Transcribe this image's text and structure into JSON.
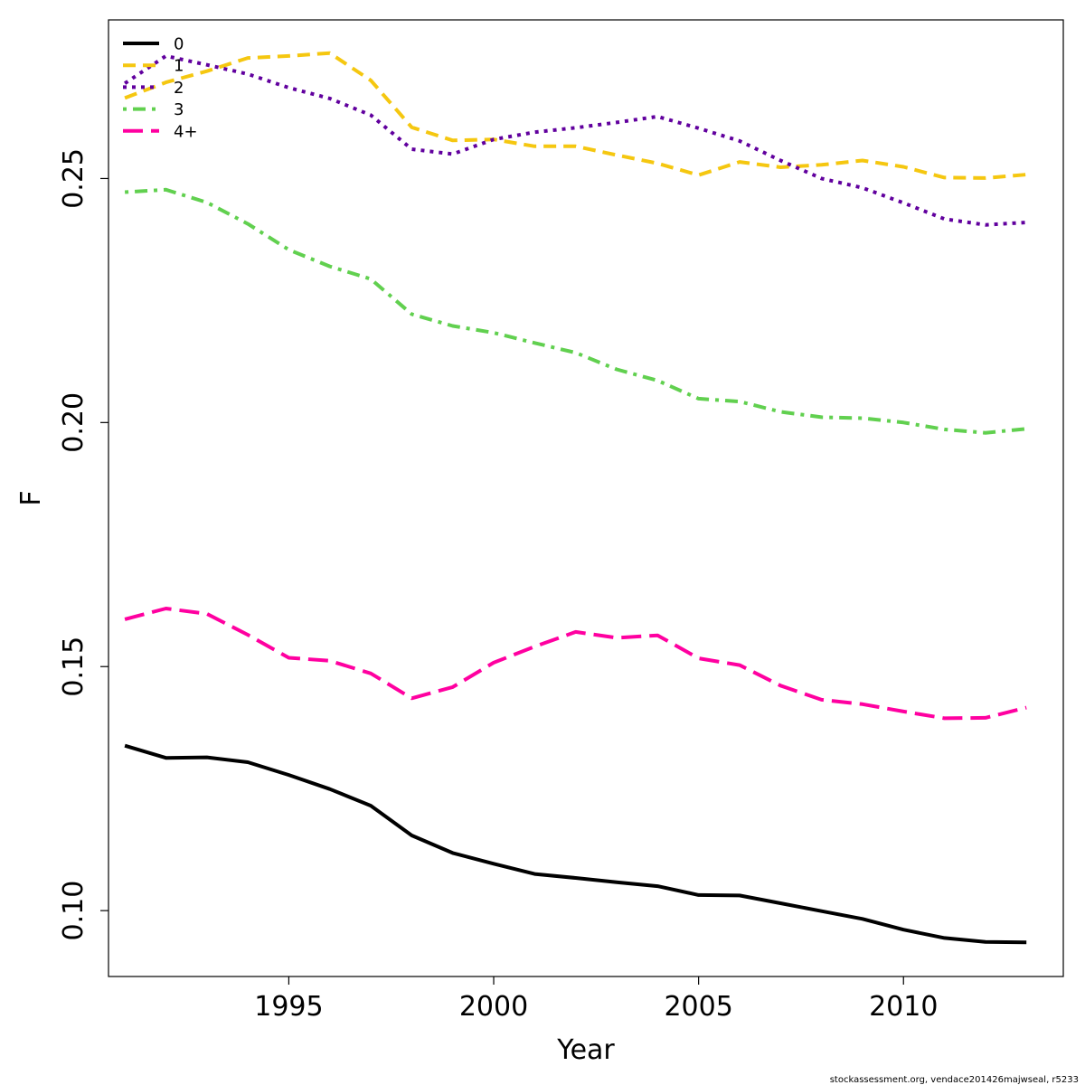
{
  "footnote": "stockassessment.org, vendace201426majwseal, r5233",
  "chart_data": {
    "type": "line",
    "xlabel": "Year",
    "ylabel": "F",
    "xlim": [
      1990.6,
      2013.9
    ],
    "ylim": [
      0.0865,
      0.2825
    ],
    "x_ticks": [
      1995,
      2000,
      2005,
      2010
    ],
    "x_tick_labels": [
      "1995",
      "2000",
      "2005",
      "2010"
    ],
    "y_ticks": [
      0.1,
      0.15,
      0.2,
      0.25
    ],
    "y_tick_labels": [
      "0.10",
      "0.15",
      "0.20",
      "0.25"
    ],
    "grid": false,
    "legend_position": "top-left",
    "x": [
      1991,
      1992,
      1993,
      1994,
      1995,
      1996,
      1997,
      1998,
      1999,
      2000,
      2001,
      2002,
      2003,
      2004,
      2005,
      2006,
      2007,
      2008,
      2009,
      2010,
      2011,
      2012,
      2013
    ],
    "series": [
      {
        "name": "0",
        "color": "#000000",
        "dash": "solid",
        "values": [
          0.1338,
          0.1313,
          0.1314,
          0.1304,
          0.1278,
          0.1249,
          0.1215,
          0.1154,
          0.1118,
          0.1096,
          0.1075,
          0.1067,
          0.1058,
          0.105,
          0.1032,
          0.1031,
          0.1015,
          0.0999,
          0.0983,
          0.0961,
          0.0944,
          0.0936,
          0.0935
        ]
      },
      {
        "name": "1",
        "color": "#F5C710",
        "dash": "dashed",
        "values": [
          0.2665,
          0.2697,
          0.272,
          0.2747,
          0.2751,
          0.2757,
          0.2701,
          0.2605,
          0.2578,
          0.258,
          0.2566,
          0.2566,
          0.2548,
          0.2531,
          0.2507,
          0.2534,
          0.2523,
          0.2528,
          0.2537,
          0.2524,
          0.2502,
          0.2501,
          0.2508
        ]
      },
      {
        "name": "2",
        "color": "#61009E",
        "dash": "dotted",
        "values": [
          0.2695,
          0.2751,
          0.2733,
          0.2714,
          0.2686,
          0.2664,
          0.263,
          0.256,
          0.255,
          0.258,
          0.2595,
          0.2604,
          0.2615,
          0.2627,
          0.2603,
          0.2577,
          0.2537,
          0.25,
          0.2481,
          0.245,
          0.2417,
          0.2405,
          0.241
        ]
      },
      {
        "name": "3",
        "color": "#61D04F",
        "dash": "dotdash",
        "values": [
          0.2472,
          0.2477,
          0.2451,
          0.2407,
          0.2354,
          0.232,
          0.2294,
          0.2222,
          0.2198,
          0.2184,
          0.2163,
          0.2143,
          0.2109,
          0.2086,
          0.2049,
          0.2043,
          0.2022,
          0.2011,
          0.2009,
          0.2,
          0.1986,
          0.1979,
          0.1987
        ]
      },
      {
        "name": "4+",
        "color": "#FF00A0",
        "dash": "longdash",
        "values": [
          0.1597,
          0.1619,
          0.1608,
          0.1565,
          0.1518,
          0.1512,
          0.1486,
          0.1435,
          0.1458,
          0.1508,
          0.1541,
          0.1571,
          0.1559,
          0.1564,
          0.1517,
          0.1503,
          0.1461,
          0.1432,
          0.1423,
          0.1408,
          0.1394,
          0.1395,
          0.1416
        ]
      }
    ]
  }
}
